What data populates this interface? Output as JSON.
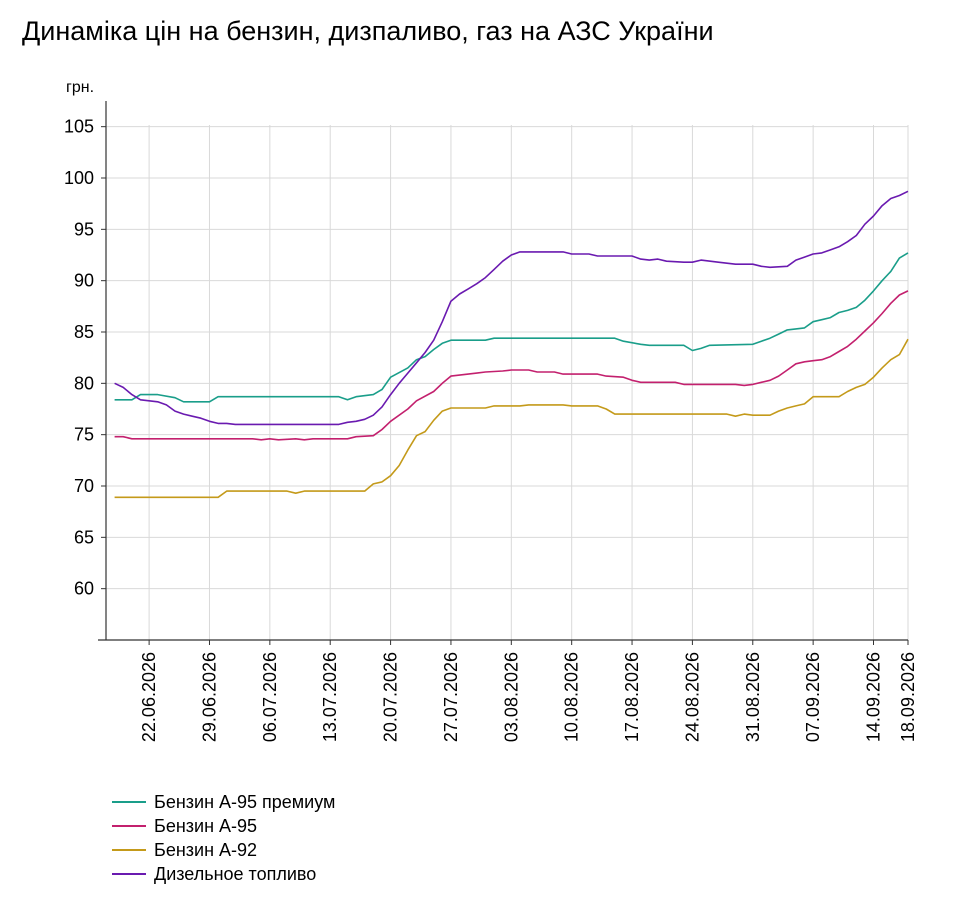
{
  "chart_data": {
    "type": "line",
    "title": "Динаміка цін на бензин, дизпаливо, газ на АЗС України",
    "ylabel": "грн.",
    "ylim": [
      55,
      107.5
    ],
    "yticks": [
      60,
      65,
      70,
      75,
      80,
      85,
      90,
      95,
      100,
      105
    ],
    "xlim": [
      "2026-06-17",
      "2026-09-18"
    ],
    "xticks": [
      "22.06.2026",
      "29.06.2026",
      "06.07.2026",
      "13.07.2026",
      "20.07.2026",
      "27.07.2026",
      "03.08.2026",
      "10.08.2026",
      "17.08.2026",
      "24.08.2026",
      "31.08.2026",
      "07.09.2026",
      "14.09.2026",
      "18.09.2026"
    ],
    "grid": true,
    "legend_position": "bottom-left",
    "series": [
      {
        "name": "Бензин А-95 премиум",
        "color": "#1a9e8a",
        "points": [
          [
            "2026-06-18",
            78.4
          ],
          [
            "2026-06-20",
            78.4
          ],
          [
            "2026-06-21",
            78.9
          ],
          [
            "2026-06-23",
            78.9
          ],
          [
            "2026-06-25",
            78.6
          ],
          [
            "2026-06-26",
            78.2
          ],
          [
            "2026-06-29",
            78.2
          ],
          [
            "2026-06-30",
            78.7
          ],
          [
            "2026-07-14",
            78.7
          ],
          [
            "2026-07-15",
            78.4
          ],
          [
            "2026-07-16",
            78.7
          ],
          [
            "2026-07-18",
            78.9
          ],
          [
            "2026-07-19",
            79.4
          ],
          [
            "2026-07-20",
            80.6
          ],
          [
            "2026-07-22",
            81.5
          ],
          [
            "2026-07-23",
            82.3
          ],
          [
            "2026-07-24",
            82.6
          ],
          [
            "2026-07-25",
            83.3
          ],
          [
            "2026-07-26",
            83.9
          ],
          [
            "2026-07-27",
            84.2
          ],
          [
            "2026-07-31",
            84.2
          ],
          [
            "2026-08-01",
            84.4
          ],
          [
            "2026-08-15",
            84.4
          ],
          [
            "2026-08-16",
            84.1
          ],
          [
            "2026-08-18",
            83.8
          ],
          [
            "2026-08-19",
            83.7
          ],
          [
            "2026-08-23",
            83.7
          ],
          [
            "2026-08-24",
            83.2
          ],
          [
            "2026-08-25",
            83.4
          ],
          [
            "2026-08-26",
            83.7
          ],
          [
            "2026-08-31",
            83.8
          ],
          [
            "2026-09-01",
            84.1
          ],
          [
            "2026-09-02",
            84.4
          ],
          [
            "2026-09-03",
            84.8
          ],
          [
            "2026-09-04",
            85.2
          ],
          [
            "2026-09-06",
            85.4
          ],
          [
            "2026-09-07",
            86.0
          ],
          [
            "2026-09-08",
            86.2
          ],
          [
            "2026-09-09",
            86.4
          ],
          [
            "2026-09-10",
            86.9
          ],
          [
            "2026-09-11",
            87.1
          ],
          [
            "2026-09-12",
            87.4
          ],
          [
            "2026-09-13",
            88.1
          ],
          [
            "2026-09-14",
            89.0
          ],
          [
            "2026-09-15",
            90.0
          ],
          [
            "2026-09-16",
            90.9
          ],
          [
            "2026-09-17",
            92.2
          ],
          [
            "2026-09-18",
            92.7
          ]
        ]
      },
      {
        "name": "Бензин А-95",
        "color": "#c3206e",
        "points": [
          [
            "2026-06-18",
            74.8
          ],
          [
            "2026-06-19",
            74.8
          ],
          [
            "2026-06-20",
            74.6
          ],
          [
            "2026-07-04",
            74.6
          ],
          [
            "2026-07-05",
            74.5
          ],
          [
            "2026-07-06",
            74.6
          ],
          [
            "2026-07-07",
            74.5
          ],
          [
            "2026-07-09",
            74.6
          ],
          [
            "2026-07-10",
            74.5
          ],
          [
            "2026-07-11",
            74.6
          ],
          [
            "2026-07-15",
            74.6
          ],
          [
            "2026-07-16",
            74.8
          ],
          [
            "2026-07-18",
            74.9
          ],
          [
            "2026-07-19",
            75.5
          ],
          [
            "2026-07-20",
            76.3
          ],
          [
            "2026-07-22",
            77.5
          ],
          [
            "2026-07-23",
            78.3
          ],
          [
            "2026-07-25",
            79.2
          ],
          [
            "2026-07-26",
            80.0
          ],
          [
            "2026-07-27",
            80.7
          ],
          [
            "2026-07-29",
            80.9
          ],
          [
            "2026-07-30",
            81.0
          ],
          [
            "2026-07-31",
            81.1
          ],
          [
            "2026-08-02",
            81.2
          ],
          [
            "2026-08-03",
            81.3
          ],
          [
            "2026-08-05",
            81.3
          ],
          [
            "2026-08-06",
            81.1
          ],
          [
            "2026-08-08",
            81.1
          ],
          [
            "2026-08-09",
            80.9
          ],
          [
            "2026-08-13",
            80.9
          ],
          [
            "2026-08-14",
            80.7
          ],
          [
            "2026-08-16",
            80.6
          ],
          [
            "2026-08-17",
            80.3
          ],
          [
            "2026-08-18",
            80.1
          ],
          [
            "2026-08-22",
            80.1
          ],
          [
            "2026-08-23",
            79.9
          ],
          [
            "2026-08-29",
            79.9
          ],
          [
            "2026-08-30",
            79.8
          ],
          [
            "2026-08-31",
            79.9
          ],
          [
            "2026-09-01",
            80.1
          ],
          [
            "2026-09-02",
            80.3
          ],
          [
            "2026-09-03",
            80.7
          ],
          [
            "2026-09-04",
            81.3
          ],
          [
            "2026-09-05",
            81.9
          ],
          [
            "2026-09-06",
            82.1
          ],
          [
            "2026-09-07",
            82.2
          ],
          [
            "2026-09-08",
            82.3
          ],
          [
            "2026-09-09",
            82.6
          ],
          [
            "2026-09-10",
            83.1
          ],
          [
            "2026-09-11",
            83.6
          ],
          [
            "2026-09-12",
            84.3
          ],
          [
            "2026-09-13",
            85.1
          ],
          [
            "2026-09-14",
            85.9
          ],
          [
            "2026-09-15",
            86.8
          ],
          [
            "2026-09-16",
            87.8
          ],
          [
            "2026-09-17",
            88.6
          ],
          [
            "2026-09-18",
            89.0
          ]
        ]
      },
      {
        "name": "Бензин А-92",
        "color": "#c49a1a",
        "points": [
          [
            "2026-06-18",
            68.9
          ],
          [
            "2026-06-30",
            68.9
          ],
          [
            "2026-07-01",
            69.5
          ],
          [
            "2026-07-08",
            69.5
          ],
          [
            "2026-07-09",
            69.3
          ],
          [
            "2026-07-10",
            69.5
          ],
          [
            "2026-07-17",
            69.5
          ],
          [
            "2026-07-18",
            70.2
          ],
          [
            "2026-07-19",
            70.4
          ],
          [
            "2026-07-20",
            71.0
          ],
          [
            "2026-07-21",
            72.0
          ],
          [
            "2026-07-22",
            73.5
          ],
          [
            "2026-07-23",
            74.9
          ],
          [
            "2026-07-24",
            75.3
          ],
          [
            "2026-07-25",
            76.4
          ],
          [
            "2026-07-26",
            77.3
          ],
          [
            "2026-07-27",
            77.6
          ],
          [
            "2026-07-31",
            77.6
          ],
          [
            "2026-08-01",
            77.8
          ],
          [
            "2026-08-04",
            77.8
          ],
          [
            "2026-08-05",
            77.9
          ],
          [
            "2026-08-09",
            77.9
          ],
          [
            "2026-08-10",
            77.8
          ],
          [
            "2026-08-13",
            77.8
          ],
          [
            "2026-08-14",
            77.5
          ],
          [
            "2026-08-15",
            77.0
          ],
          [
            "2026-08-28",
            77.0
          ],
          [
            "2026-08-29",
            76.8
          ],
          [
            "2026-08-30",
            77.0
          ],
          [
            "2026-08-31",
            76.9
          ],
          [
            "2026-09-02",
            76.9
          ],
          [
            "2026-09-03",
            77.3
          ],
          [
            "2026-09-04",
            77.6
          ],
          [
            "2026-09-05",
            77.8
          ],
          [
            "2026-09-06",
            78.0
          ],
          [
            "2026-09-07",
            78.7
          ],
          [
            "2026-09-10",
            78.7
          ],
          [
            "2026-09-11",
            79.2
          ],
          [
            "2026-09-12",
            79.6
          ],
          [
            "2026-09-13",
            79.9
          ],
          [
            "2026-09-14",
            80.6
          ],
          [
            "2026-09-15",
            81.5
          ],
          [
            "2026-09-16",
            82.3
          ],
          [
            "2026-09-17",
            82.8
          ],
          [
            "2026-09-18",
            84.3
          ]
        ]
      },
      {
        "name": "Дизельное топливо",
        "color": "#6a1ab0",
        "points": [
          [
            "2026-06-18",
            80.0
          ],
          [
            "2026-06-19",
            79.6
          ],
          [
            "2026-06-20",
            78.9
          ],
          [
            "2026-06-21",
            78.4
          ],
          [
            "2026-06-23",
            78.2
          ],
          [
            "2026-06-24",
            77.9
          ],
          [
            "2026-06-25",
            77.3
          ],
          [
            "2026-06-26",
            77.0
          ],
          [
            "2026-06-27",
            76.8
          ],
          [
            "2026-06-28",
            76.6
          ],
          [
            "2026-06-29",
            76.3
          ],
          [
            "2026-06-30",
            76.1
          ],
          [
            "2026-07-01",
            76.1
          ],
          [
            "2026-07-02",
            76.0
          ],
          [
            "2026-07-14",
            76.0
          ],
          [
            "2026-07-15",
            76.2
          ],
          [
            "2026-07-16",
            76.3
          ],
          [
            "2026-07-17",
            76.5
          ],
          [
            "2026-07-18",
            76.9
          ],
          [
            "2026-07-19",
            77.7
          ],
          [
            "2026-07-20",
            78.9
          ],
          [
            "2026-07-21",
            80.0
          ],
          [
            "2026-07-22",
            81.0
          ],
          [
            "2026-07-23",
            82.0
          ],
          [
            "2026-07-24",
            83.0
          ],
          [
            "2026-07-25",
            84.2
          ],
          [
            "2026-07-26",
            86.0
          ],
          [
            "2026-07-27",
            88.0
          ],
          [
            "2026-07-28",
            88.7
          ],
          [
            "2026-07-29",
            89.2
          ],
          [
            "2026-07-30",
            89.7
          ],
          [
            "2026-07-31",
            90.3
          ],
          [
            "2026-08-01",
            91.1
          ],
          [
            "2026-08-02",
            91.9
          ],
          [
            "2026-08-03",
            92.5
          ],
          [
            "2026-08-04",
            92.8
          ],
          [
            "2026-08-09",
            92.8
          ],
          [
            "2026-08-10",
            92.6
          ],
          [
            "2026-08-12",
            92.6
          ],
          [
            "2026-08-13",
            92.4
          ],
          [
            "2026-08-17",
            92.4
          ],
          [
            "2026-08-18",
            92.1
          ],
          [
            "2026-08-19",
            92.0
          ],
          [
            "2026-08-20",
            92.1
          ],
          [
            "2026-08-21",
            91.9
          ],
          [
            "2026-08-23",
            91.8
          ],
          [
            "2026-08-24",
            91.8
          ],
          [
            "2026-08-25",
            92.0
          ],
          [
            "2026-08-27",
            91.8
          ],
          [
            "2026-08-29",
            91.6
          ],
          [
            "2026-08-31",
            91.6
          ],
          [
            "2026-09-01",
            91.4
          ],
          [
            "2026-09-02",
            91.3
          ],
          [
            "2026-09-04",
            91.4
          ],
          [
            "2026-09-05",
            92.0
          ],
          [
            "2026-09-06",
            92.3
          ],
          [
            "2026-09-07",
            92.6
          ],
          [
            "2026-09-08",
            92.7
          ],
          [
            "2026-09-09",
            93.0
          ],
          [
            "2026-09-10",
            93.3
          ],
          [
            "2026-09-11",
            93.8
          ],
          [
            "2026-09-12",
            94.4
          ],
          [
            "2026-09-13",
            95.5
          ],
          [
            "2026-09-14",
            96.3
          ],
          [
            "2026-09-15",
            97.3
          ],
          [
            "2026-09-16",
            98.0
          ],
          [
            "2026-09-17",
            98.3
          ],
          [
            "2026-09-18",
            98.7
          ]
        ]
      }
    ]
  }
}
